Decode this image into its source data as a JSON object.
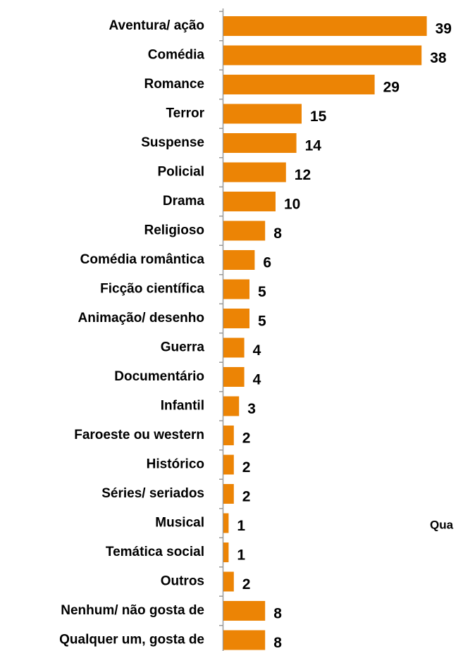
{
  "chart_data": {
    "type": "bar",
    "orientation": "horizontal",
    "categories": [
      "Aventura/ ação",
      "Comédia",
      "Romance",
      "Terror",
      "Suspense",
      "Policial",
      "Drama",
      "Religioso",
      "Comédia romântica",
      "Ficção científica",
      "Animação/ desenho",
      "Guerra",
      "Documentário",
      "Infantil",
      "Faroeste ou western",
      "Histórico",
      "Séries/ seriados",
      "Musical",
      "Temática social",
      "Outros",
      "Nenhum/ não gosta de",
      "Qualquer um, gosta de"
    ],
    "values": [
      39,
      38,
      29,
      15,
      14,
      12,
      10,
      8,
      6,
      5,
      5,
      4,
      4,
      3,
      2,
      2,
      2,
      1,
      1,
      2,
      8,
      8
    ],
    "color": "#ec8405",
    "annotation": "Qua"
  }
}
